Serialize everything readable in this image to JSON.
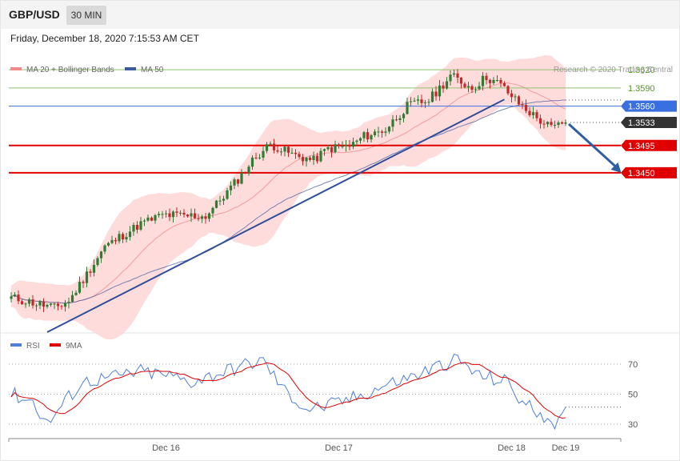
{
  "header": {
    "symbol": "GBP/USD",
    "timeframe": "30 MIN"
  },
  "timestamp": "Friday, December 18, 2020 7:15:53 AM CET",
  "copyright": "Research © 2020 Trading Central",
  "colors": {
    "up": "#2e7d32",
    "down": "#c62828",
    "band": "#ffd6d6",
    "ma20": "#f08a8a",
    "ma50": "#3d5a9c",
    "rsi": "#4f7fd6",
    "rsi_ma": "#e00000",
    "green": "#8cc26b",
    "blue": "#3a6fe0",
    "red": "#e00000",
    "dark": "#333333"
  },
  "chart_data": [
    {
      "type": "candlestick",
      "title": "",
      "legend": [
        {
          "name": "MA 20 + Bollinger Bands",
          "color": "#f08a8a"
        },
        {
          "name": "MA 50",
          "color": "#3d5a9c"
        }
      ],
      "ylim": [
        1.3187,
        1.364
      ],
      "x_ticks": [
        {
          "label": "Dec 16",
          "i": 43
        },
        {
          "label": "Dec 17",
          "i": 91
        },
        {
          "label": "Dec 18",
          "i": 139
        },
        {
          "label": "Dec 19",
          "i": 154
        }
      ],
      "levels": [
        {
          "label": "1.3620",
          "value": 1.362,
          "style": "green"
        },
        {
          "label": "1.3590",
          "value": 1.359,
          "style": "green"
        },
        {
          "label": "1.3560",
          "value": 1.356,
          "style": "blue"
        },
        {
          "label": "1.3533",
          "value": 1.3533,
          "style": "current"
        },
        {
          "label": "1.3495",
          "value": 1.3495,
          "style": "red"
        },
        {
          "label": "1.3450",
          "value": 1.345,
          "style": "red"
        }
      ],
      "trendline": {
        "from": {
          "i": 0,
          "value": 1.3187
        },
        "to": {
          "i": 137,
          "value": 1.3571
        }
      },
      "forecast_arrow": {
        "from": {
          "i": 154,
          "value": 1.3533
        },
        "to": {
          "i": 169,
          "value": 1.345
        }
      },
      "candles": [],
      "ma20": [],
      "ma50": [],
      "bb_upper": [],
      "bb_lower": []
    },
    {
      "type": "line",
      "legend": [
        {
          "name": "RSI",
          "color": "#4f7fd6"
        },
        {
          "name": "9MA",
          "color": "#e00000"
        }
      ],
      "ylim": [
        22,
        78
      ],
      "y_ticks": [
        "70",
        "50",
        "30"
      ],
      "rsi": [],
      "rsi_ma": []
    }
  ]
}
